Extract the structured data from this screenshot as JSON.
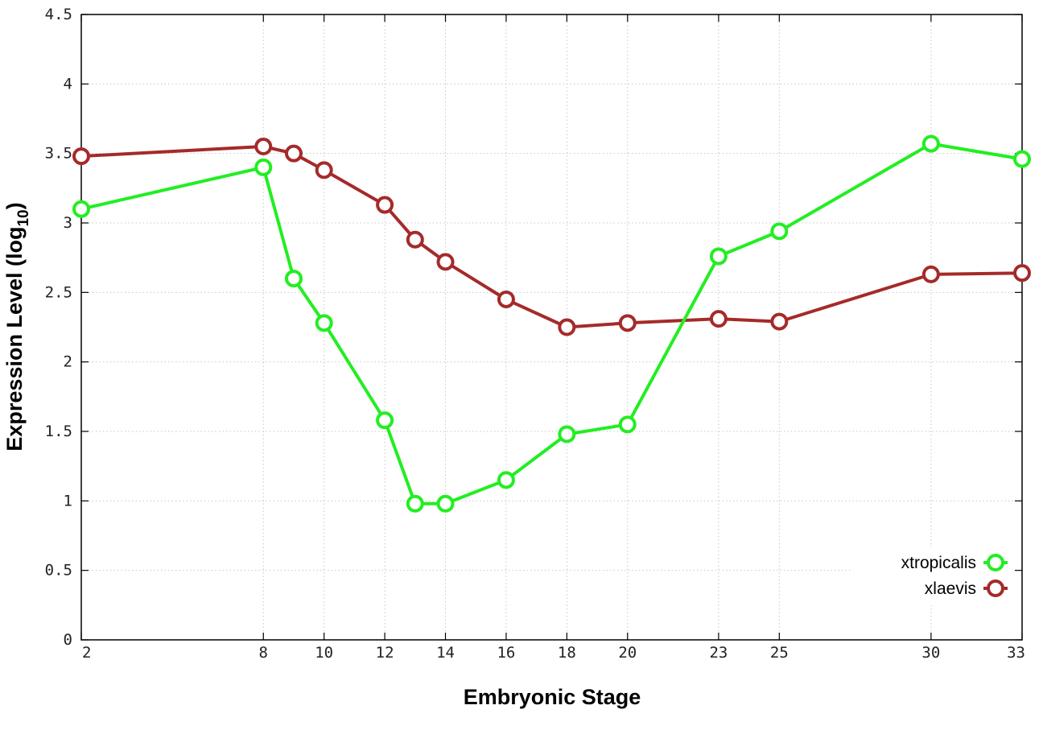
{
  "chart_data": {
    "type": "line",
    "xlabel": "Embryonic Stage",
    "ylabel": "Expression Level (log",
    "ylabel_subscript": "10",
    "ylabel_close": ")",
    "x": [
      2,
      8,
      9,
      10,
      12,
      13,
      14,
      16,
      18,
      20,
      23,
      25,
      30,
      33
    ],
    "x_ticks": [
      "2",
      "8",
      "10",
      "12",
      "14",
      "16",
      "18",
      "20",
      "23",
      "25",
      "30",
      "33"
    ],
    "x_tick_values": [
      2,
      8,
      10,
      12,
      14,
      16,
      18,
      20,
      23,
      25,
      30,
      33
    ],
    "y_ticks": [
      "0",
      "0.5",
      "1",
      "1.5",
      "2",
      "2.5",
      "3",
      "3.5",
      "4",
      "4.5"
    ],
    "y_tick_values": [
      0,
      0.5,
      1,
      1.5,
      2,
      2.5,
      3,
      3.5,
      4,
      4.5
    ],
    "xlim": [
      2,
      33
    ],
    "ylim": [
      0,
      4.5
    ],
    "grid": true,
    "legend_position": "bottom-right",
    "series": [
      {
        "name": "xtropicalis",
        "color": "#22ee22",
        "values": [
          3.1,
          3.4,
          2.6,
          2.28,
          1.58,
          0.98,
          0.98,
          1.15,
          1.48,
          1.55,
          2.76,
          2.94,
          3.57,
          3.46
        ]
      },
      {
        "name": "xlaevis",
        "color": "#a52a2a",
        "values": [
          3.48,
          3.55,
          3.5,
          3.38,
          3.13,
          2.88,
          2.72,
          2.45,
          2.25,
          2.28,
          2.31,
          2.29,
          2.63,
          2.64
        ]
      }
    ]
  }
}
